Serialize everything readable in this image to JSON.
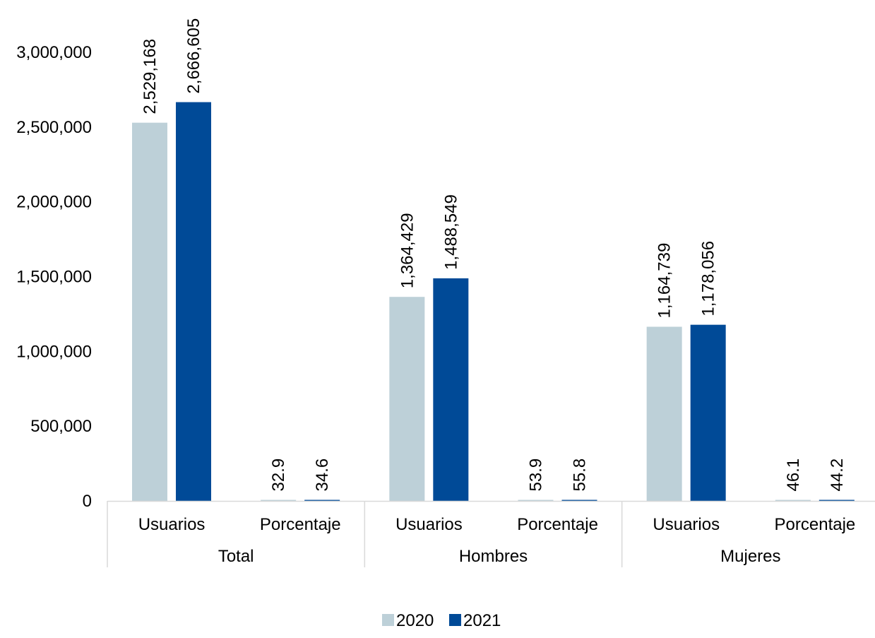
{
  "chart_data": {
    "type": "bar",
    "title": "",
    "xlabel": "",
    "ylabel": "",
    "ylim": [
      0,
      3000000
    ],
    "yticks": [
      0,
      500000,
      1000000,
      1500000,
      2000000,
      2500000,
      3000000
    ],
    "ytick_labels": [
      "0",
      "500,000",
      "1,000,000",
      "1,500,000",
      "2,000,000",
      "2,500,000",
      "3,000,000"
    ],
    "groups": [
      "Total",
      "Hombres",
      "Mujeres"
    ],
    "categories": [
      "Usuarios",
      "Porcentaje",
      "Usuarios",
      "Porcentaje",
      "Usuarios",
      "Porcentaje"
    ],
    "series": [
      {
        "name": "2020",
        "color": "#bdd0d8",
        "values": [
          2529168,
          32.9,
          1364429,
          53.9,
          1164739,
          46.1
        ],
        "labels": [
          "2,529,168",
          "32.9",
          "1,364,429",
          "53.9",
          "1,164,739",
          "46.1"
        ]
      },
      {
        "name": "2021",
        "color": "#004a97",
        "values": [
          2666605,
          34.6,
          1488549,
          55.8,
          1178056,
          44.2
        ],
        "labels": [
          "2,666,605",
          "34.6",
          "1,488,549",
          "55.8",
          "1,178,056",
          "44.2"
        ]
      }
    ],
    "grid": false,
    "legend_position": "bottom"
  }
}
